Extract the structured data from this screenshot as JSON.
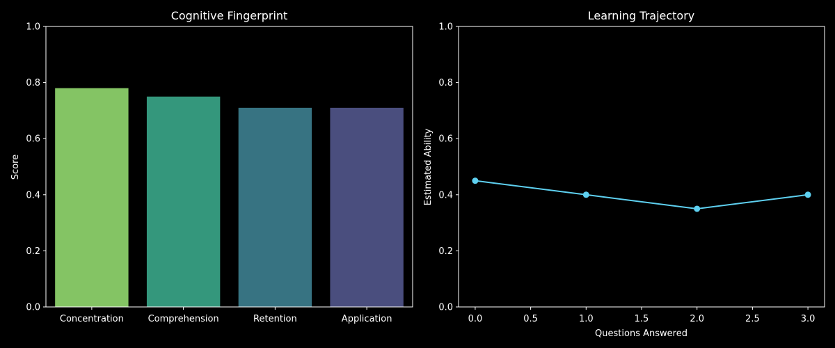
{
  "chart_data": [
    {
      "type": "bar",
      "title": "Cognitive Fingerprint",
      "xlabel": "",
      "ylabel": "Score",
      "categories": [
        "Concentration",
        "Comprehension",
        "Retention",
        "Application"
      ],
      "values": [
        0.78,
        0.75,
        0.71,
        0.71
      ],
      "colors": [
        "#84c464",
        "#34977c",
        "#377382",
        "#4a4e7e"
      ],
      "ylim": [
        0,
        1
      ],
      "yticks": [
        "0.0",
        "0.2",
        "0.4",
        "0.6",
        "0.8",
        "1.0"
      ],
      "grid": false
    },
    {
      "type": "line",
      "title": "Learning Trajectory",
      "xlabel": "Questions Answered",
      "ylabel": "Estimated Ability",
      "x": [
        0,
        1,
        2,
        3
      ],
      "y": [
        0.45,
        0.4,
        0.35,
        0.4
      ],
      "color": "#5ed0f0",
      "xlim": [
        -0.15,
        3.15
      ],
      "ylim": [
        0,
        1
      ],
      "xticks": [
        "0.0",
        "0.5",
        "1.0",
        "1.5",
        "2.0",
        "2.5",
        "3.0"
      ],
      "yticks": [
        "0.0",
        "0.2",
        "0.4",
        "0.6",
        "0.8",
        "1.0"
      ],
      "grid": false
    }
  ]
}
